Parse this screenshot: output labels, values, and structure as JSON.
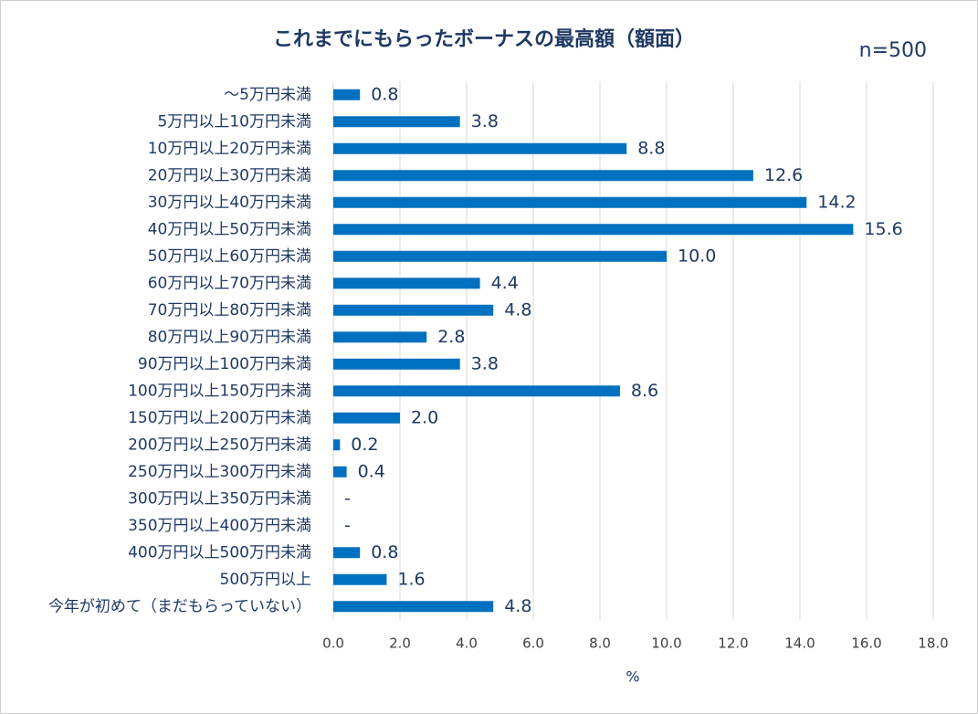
{
  "chart_data": {
    "type": "bar",
    "orientation": "horizontal",
    "title": "これまでにもらったボーナスの最高額（額面）",
    "subtitle": "n=500",
    "x_label": "%",
    "categories": [
      "～5万円未満",
      "5万円以上10万円未満",
      "10万円以上20万円未満",
      "20万円以上30万円未満",
      "30万円以上40万円未満",
      "40万円以上50万円未満",
      "50万円以上60万円未満",
      "60万円以上70万円未満",
      "70万円以上80万円未満",
      "80万円以上90万円未満",
      "90万円以上100万円未満",
      "100万円以上150万円未満",
      "150万円以上200万円未満",
      "200万円以上250万円未満",
      "250万円以上300万円未満",
      "300万円以上350万円未満",
      "350万円以上400万円未満",
      "400万円以上500万円未満",
      "500万円以上",
      "今年が初めて（まだもらっていない）"
    ],
    "values": [
      0.8,
      3.8,
      8.8,
      12.6,
      14.2,
      15.6,
      10.0,
      4.4,
      4.8,
      2.8,
      3.8,
      8.6,
      2.0,
      0.2,
      0.4,
      0,
      0,
      0.8,
      1.6,
      4.8
    ],
    "value_labels": [
      "0.8",
      "3.8",
      "8.8",
      "12.6",
      "14.2",
      "15.6",
      "10.0",
      "4.4",
      "4.8",
      "2.8",
      "3.8",
      "8.6",
      "2.0",
      "0.2",
      "0.4",
      "-",
      "-",
      "0.8",
      "1.6",
      "4.8"
    ],
    "color": "#0070c0",
    "xlim": [
      0,
      18
    ],
    "xticks": [
      {
        "value": 0,
        "label": "0.0"
      },
      {
        "value": 2,
        "label": "2.0"
      },
      {
        "value": 4,
        "label": "4.0"
      },
      {
        "value": 6,
        "label": "6.0"
      },
      {
        "value": 8,
        "label": "8.0"
      },
      {
        "value": 10,
        "label": "10.0"
      },
      {
        "value": 12,
        "label": "12.0"
      },
      {
        "value": 14,
        "label": "14.0"
      },
      {
        "value": 16,
        "label": "16.0"
      },
      {
        "value": 18,
        "label": "18.0"
      }
    ],
    "grid": true
  }
}
